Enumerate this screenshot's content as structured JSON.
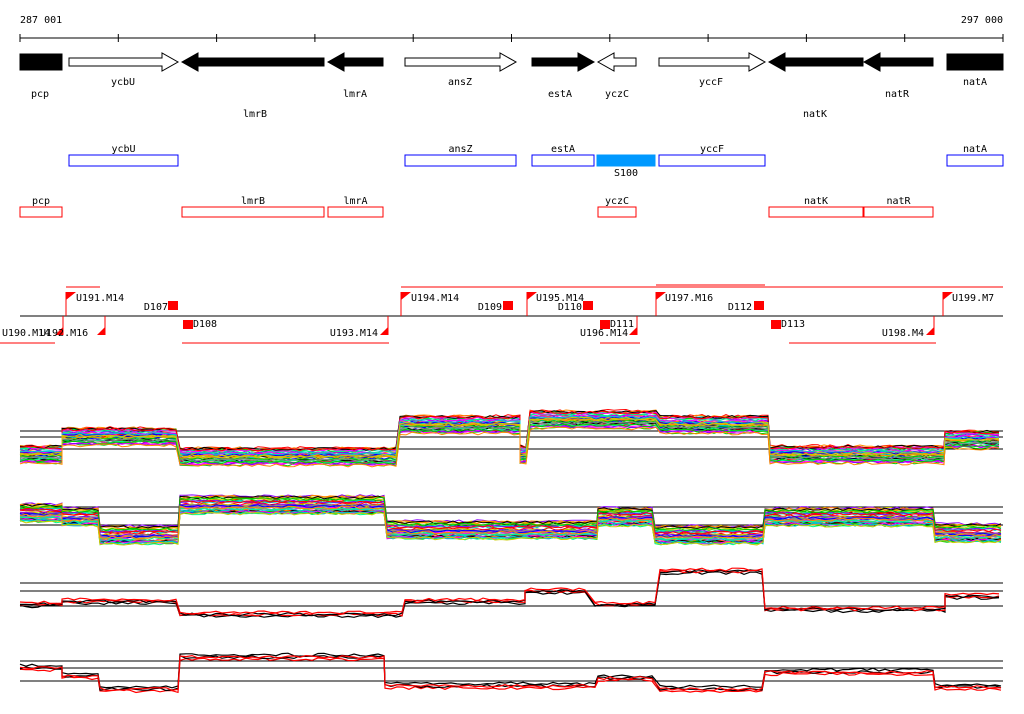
{
  "ruler": {
    "start_label": "287 001",
    "end_label": "297 000"
  },
  "genes": [
    {
      "name": "pcp",
      "strand": "filled",
      "dir": "none"
    },
    {
      "name": "ycbU",
      "strand": "open",
      "dir": "right"
    },
    {
      "name": "lmrB",
      "strand": "filled",
      "dir": "left"
    },
    {
      "name": "lmrA",
      "strand": "filled",
      "dir": "left"
    },
    {
      "name": "ansZ",
      "strand": "open",
      "dir": "right"
    },
    {
      "name": "estA",
      "strand": "filled",
      "dir": "right"
    },
    {
      "name": "yczC",
      "strand": "open",
      "dir": "left"
    },
    {
      "name": "yccF",
      "strand": "open",
      "dir": "right"
    },
    {
      "name": "natK",
      "strand": "filled",
      "dir": "left"
    },
    {
      "name": "natR",
      "strand": "filled",
      "dir": "left"
    },
    {
      "name": "natA",
      "strand": "filled",
      "dir": "none"
    }
  ],
  "blue_track": [
    "ycbU",
    "ansZ",
    "estA",
    "S100",
    "yccF",
    "natA"
  ],
  "red_track": [
    "pcp",
    "lmrB",
    "lmrA",
    "yczC",
    "natK",
    "natR"
  ],
  "features": [
    "U190.M14",
    "U191.M14",
    "U192.M16",
    "D107",
    "D108",
    "U193.M14",
    "U194.M14",
    "D109",
    "U195.M14",
    "D110",
    "D111",
    "U196.M14",
    "U197.M16",
    "D112",
    "D113",
    "U198.M4",
    "U199.M7"
  ],
  "colors": {
    "blue": "#0000ff",
    "blue_fill": "#0099ff",
    "red": "#ff0000",
    "black": "#000000"
  }
}
